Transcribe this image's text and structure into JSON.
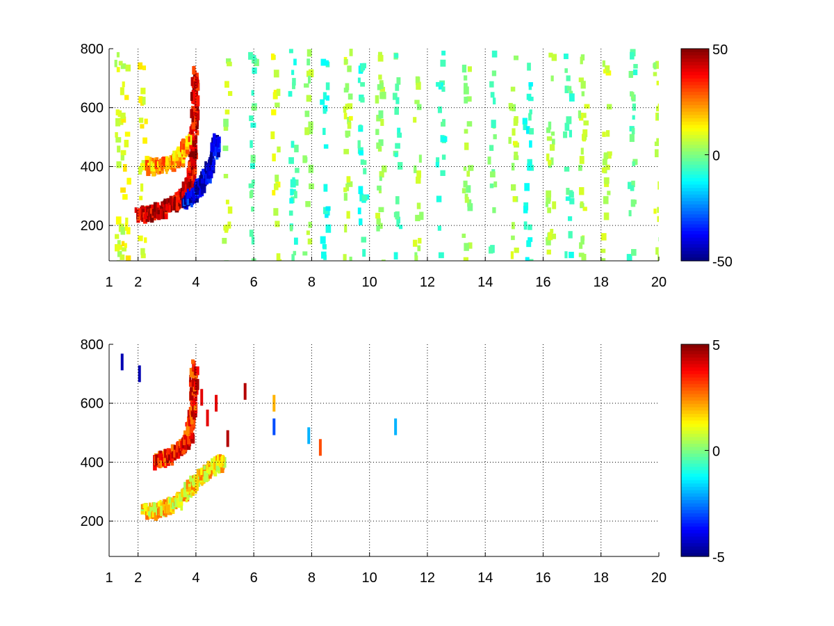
{
  "chart_data": [
    {
      "type": "heatmap",
      "title": "",
      "xlabel": "",
      "ylabel": "",
      "xlim": [
        1,
        20
      ],
      "ylim": [
        80,
        800
      ],
      "x_ticks": [
        "1",
        "2",
        "4",
        "6",
        "8",
        "10",
        "12",
        "14",
        "16",
        "18",
        "20"
      ],
      "y_ticks": [
        "200",
        "400",
        "600",
        "800"
      ],
      "grid": true,
      "colorbar": {
        "min": -50,
        "max": 50,
        "ticks": [
          "50",
          "0",
          "-50"
        ],
        "colormap": "jet"
      },
      "features": [
        {
          "label": "red band",
          "points": [
            [
              2.0,
              250
            ],
            [
              2.4,
              255
            ],
            [
              2.8,
              270
            ],
            [
              3.2,
              290
            ],
            [
              3.5,
              310
            ],
            [
              3.75,
              360
            ],
            [
              3.85,
              450
            ],
            [
              3.9,
              600
            ],
            [
              3.95,
              740
            ]
          ],
          "value": 42
        },
        {
          "label": "yellow band",
          "points": [
            [
              2.3,
              420
            ],
            [
              2.7,
              415
            ],
            [
              3.1,
              425
            ],
            [
              3.4,
              450
            ],
            [
              3.7,
              500
            ]
          ],
          "value": 22
        },
        {
          "label": "blue band",
          "points": [
            [
              3.6,
              300
            ],
            [
              3.9,
              320
            ],
            [
              4.2,
              360
            ],
            [
              4.5,
              420
            ],
            [
              4.7,
              520
            ]
          ],
          "value": -40
        }
      ],
      "stripes": [
        {
          "x": 1.3,
          "value": 8
        },
        {
          "x": 1.5,
          "value": 12
        },
        {
          "x": 2.1,
          "value": 10
        },
        {
          "x": 5.0,
          "value": 5
        },
        {
          "x": 5.9,
          "value": -4
        },
        {
          "x": 6.7,
          "value": 9
        },
        {
          "x": 7.3,
          "value": -6
        },
        {
          "x": 7.8,
          "value": 3
        },
        {
          "x": 8.4,
          "value": -10
        },
        {
          "x": 9.2,
          "value": 6
        },
        {
          "x": 9.7,
          "value": -8
        },
        {
          "x": 10.3,
          "value": 4
        },
        {
          "x": 10.9,
          "value": -5
        },
        {
          "x": 11.6,
          "value": 5
        },
        {
          "x": 12.4,
          "value": -7
        },
        {
          "x": 13.3,
          "value": 3
        },
        {
          "x": 14.2,
          "value": -3
        },
        {
          "x": 14.9,
          "value": 6
        },
        {
          "x": 15.4,
          "value": -9
        },
        {
          "x": 16.2,
          "value": 4
        },
        {
          "x": 16.8,
          "value": -6
        },
        {
          "x": 17.3,
          "value": 5
        },
        {
          "x": 18.1,
          "value": 7
        },
        {
          "x": 19.0,
          "value": -4
        },
        {
          "x": 19.9,
          "value": 6
        }
      ]
    },
    {
      "type": "heatmap",
      "title": "",
      "xlabel": "",
      "ylabel": "",
      "xlim": [
        1,
        20
      ],
      "ylim": [
        80,
        800
      ],
      "x_ticks": [
        "1",
        "2",
        "4",
        "6",
        "8",
        "10",
        "12",
        "14",
        "16",
        "18",
        "20"
      ],
      "y_ticks": [
        "200",
        "400",
        "600",
        "800"
      ],
      "grid": true,
      "colorbar": {
        "min": -5,
        "max": 5,
        "ticks": [
          "5",
          "0",
          "-5"
        ],
        "colormap": "jet"
      },
      "features": [
        {
          "label": "lower band",
          "points": [
            [
              2.2,
              245
            ],
            [
              2.6,
              250
            ],
            [
              3.0,
              265
            ],
            [
              3.4,
              290
            ],
            [
              3.8,
              330
            ],
            [
              4.2,
              370
            ],
            [
              4.6,
              400
            ],
            [
              4.9,
              420
            ]
          ],
          "value": 1.5
        },
        {
          "label": "upper band",
          "points": [
            [
              2.6,
              420
            ],
            [
              3.0,
              430
            ],
            [
              3.4,
              460
            ],
            [
              3.7,
              500
            ],
            [
              3.85,
              600
            ],
            [
              3.9,
              750
            ]
          ],
          "value": 3.5
        }
      ],
      "specks": [
        {
          "x": 1.45,
          "y": 740,
          "value": -4.5
        },
        {
          "x": 2.05,
          "y": 700,
          "value": -4.5
        },
        {
          "x": 5.7,
          "y": 640,
          "value": 4.5
        },
        {
          "x": 6.7,
          "y": 600,
          "value": 2.0
        },
        {
          "x": 6.7,
          "y": 520,
          "value": -3.0
        },
        {
          "x": 7.9,
          "y": 490,
          "value": -2.0
        },
        {
          "x": 8.3,
          "y": 450,
          "value": 3.0
        },
        {
          "x": 10.9,
          "y": 520,
          "value": -2.0
        },
        {
          "x": 4.2,
          "y": 620,
          "value": 4.0
        },
        {
          "x": 4.4,
          "y": 550,
          "value": 4.0
        },
        {
          "x": 4.7,
          "y": 600,
          "value": 4.0
        },
        {
          "x": 5.1,
          "y": 480,
          "value": 4.5
        }
      ]
    }
  ]
}
